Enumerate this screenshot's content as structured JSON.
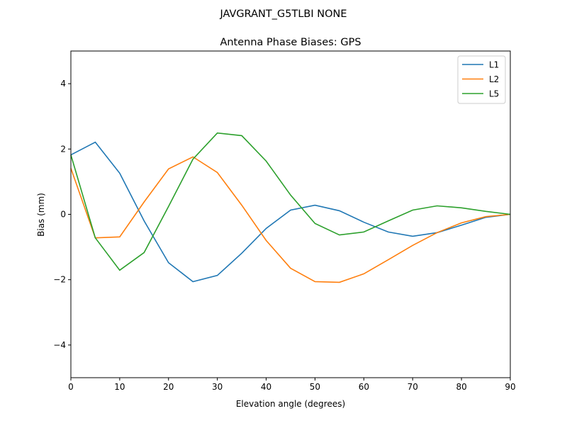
{
  "chart_data": {
    "type": "line",
    "suptitle": "JAVGRANT_G5TLBI NONE",
    "title": "Antenna Phase Biases: GPS",
    "xlabel": "Elevation angle (degrees)",
    "ylabel": "Bias (mm)",
    "xlim": [
      0,
      90
    ],
    "ylim": [
      -5,
      5
    ],
    "xticks": [
      0,
      10,
      20,
      30,
      40,
      50,
      60,
      70,
      80,
      90
    ],
    "yticks": [
      -4,
      -2,
      0,
      2,
      4
    ],
    "ytick_labels": [
      "−4",
      "−2",
      "0",
      "2",
      "4"
    ],
    "grid": false,
    "legend_position": "top-right",
    "x": [
      0,
      5,
      10,
      15,
      20,
      25,
      30,
      35,
      40,
      45,
      50,
      55,
      60,
      65,
      70,
      75,
      80,
      85,
      90
    ],
    "series": [
      {
        "name": "L1",
        "color": "#1f77b4",
        "values": [
          1.82,
          2.21,
          1.26,
          -0.2,
          -1.48,
          -2.06,
          -1.87,
          -1.19,
          -0.43,
          0.13,
          0.28,
          0.11,
          -0.24,
          -0.54,
          -0.67,
          -0.56,
          -0.33,
          -0.09,
          0.0
        ]
      },
      {
        "name": "L2",
        "color": "#ff7f0e",
        "values": [
          1.41,
          -0.72,
          -0.69,
          0.38,
          1.39,
          1.76,
          1.28,
          0.28,
          -0.8,
          -1.65,
          -2.06,
          -2.08,
          -1.82,
          -1.39,
          -0.95,
          -0.56,
          -0.26,
          -0.07,
          0.0
        ]
      },
      {
        "name": "L5",
        "color": "#2ca02c",
        "values": [
          1.82,
          -0.72,
          -1.71,
          -1.17,
          0.24,
          1.69,
          2.49,
          2.41,
          1.63,
          0.59,
          -0.28,
          -0.63,
          -0.54,
          -0.2,
          0.13,
          0.26,
          0.2,
          0.09,
          0.0
        ]
      }
    ]
  }
}
